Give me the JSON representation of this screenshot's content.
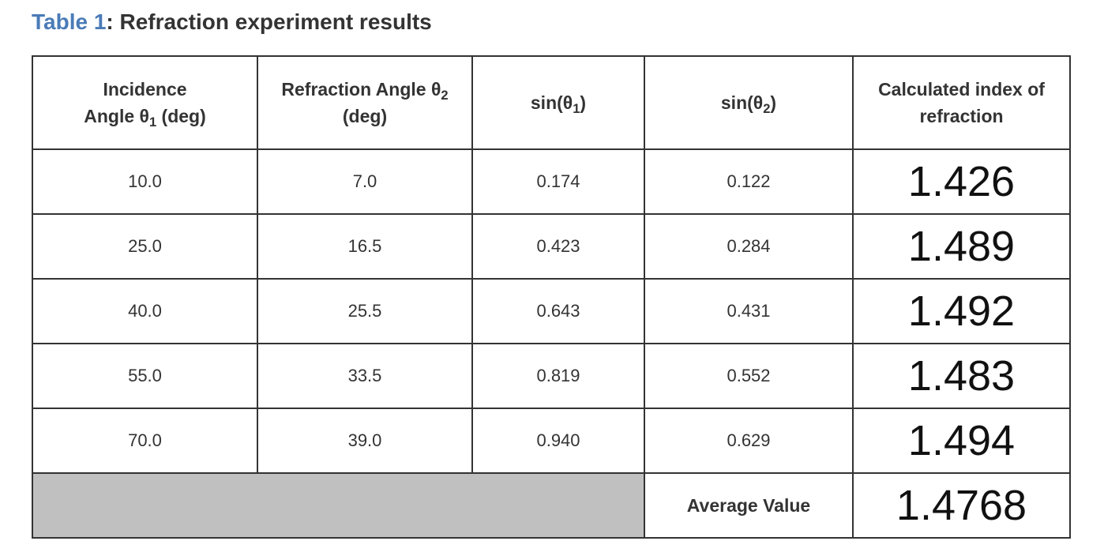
{
  "caption": {
    "label": "Table 1",
    "text": ": Refraction experiment results"
  },
  "headers": {
    "col1": {
      "line1": "Incidence",
      "line2a": "Angle θ",
      "sub": "1",
      "line2b": " (deg)"
    },
    "col2": {
      "line1a": "Refraction Angle θ",
      "sub": "2",
      "line2": "(deg)"
    },
    "col3": {
      "pre": "sin(θ",
      "sub": "1",
      "post": ")"
    },
    "col4": {
      "pre": "sin(θ",
      "sub": "2",
      "post": ")"
    },
    "col5": {
      "line1": "Calculated index of",
      "line2": "refraction"
    }
  },
  "rows": [
    {
      "incidence": "10.0",
      "refraction": "7.0",
      "sin1": "0.174",
      "sin2": "0.122",
      "index": "1.426"
    },
    {
      "incidence": "25.0",
      "refraction": "16.5",
      "sin1": "0.423",
      "sin2": "0.284",
      "index": "1.489"
    },
    {
      "incidence": "40.0",
      "refraction": "25.5",
      "sin1": "0.643",
      "sin2": "0.431",
      "index": "1.492"
    },
    {
      "incidence": "55.0",
      "refraction": "33.5",
      "sin1": "0.819",
      "sin2": "0.552",
      "index": "1.483"
    },
    {
      "incidence": "70.0",
      "refraction": "39.0",
      "sin1": "0.940",
      "sin2": "0.629",
      "index": "1.494"
    }
  ],
  "summary": {
    "label": "Average Value",
    "value": "1.4768"
  },
  "colors": {
    "caption_label": "#4a7bb7",
    "border": "#333333",
    "gray_cell": "#c0c0c0"
  }
}
